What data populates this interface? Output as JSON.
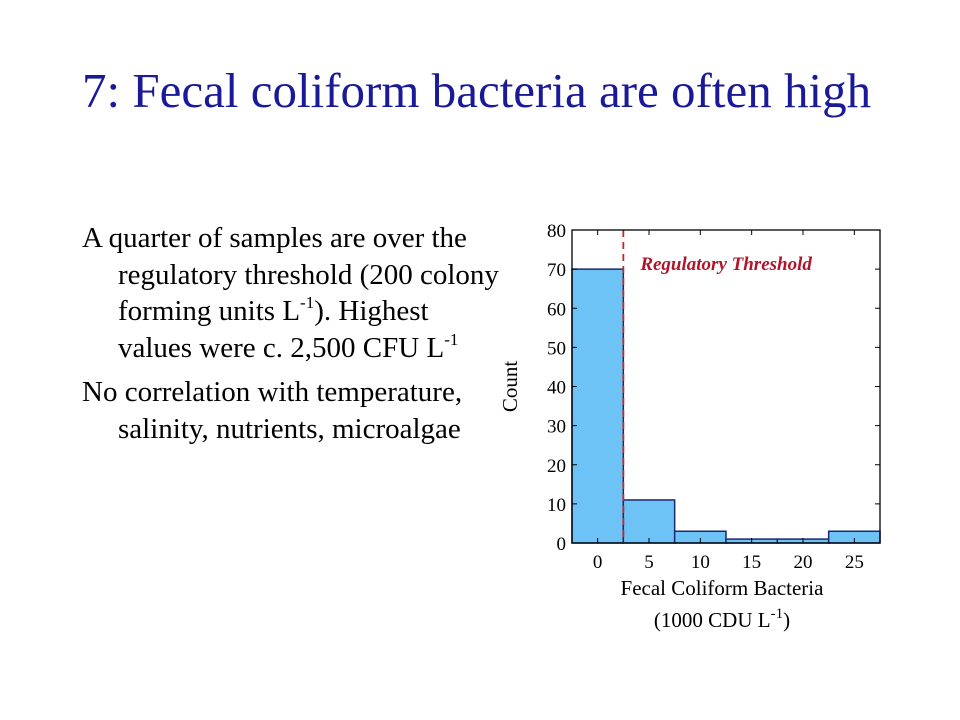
{
  "slide": {
    "title": "7: Fecal coliform bacteria are often high",
    "para1": {
      "text_a": "A quarter of samples are over the regulatory threshold (200 colony forming units L",
      "sup_a": "-1",
      "text_b": "). Highest values were c. 2,500 CFU L",
      "sup_b": "-1"
    },
    "para2": "No correlation with temperature, salinity, nutrients, microalgae"
  },
  "colors": {
    "title": "#1a1a99",
    "bar_fill": "#6ec3f6",
    "bar_stroke": "#1a2a6e",
    "threshold": "#c0282d",
    "threshold_label": "#b0152a"
  },
  "chart_data": {
    "type": "bar",
    "bins": [
      {
        "x0": -2.5,
        "x1": 2.5,
        "count": 70
      },
      {
        "x0": 2.5,
        "x1": 7.5,
        "count": 11
      },
      {
        "x0": 7.5,
        "x1": 12.5,
        "count": 3
      },
      {
        "x0": 12.5,
        "x1": 17.5,
        "count": 1
      },
      {
        "x0": 17.5,
        "x1": 22.5,
        "count": 1
      },
      {
        "x0": 22.5,
        "x1": 27.5,
        "count": 3
      }
    ],
    "xlim": [
      -2.5,
      27.5
    ],
    "ylim": [
      0,
      80
    ],
    "xticks": [
      0,
      5,
      10,
      15,
      20,
      25
    ],
    "yticks": [
      0,
      10,
      20,
      30,
      40,
      50,
      60,
      70,
      80
    ],
    "ylabel": "Count",
    "xlabel_line1": "Fecal Coliform Bacteria",
    "xlabel_line2_main": "(1000 CDU L",
    "xlabel_line2_sup": "-1",
    "xlabel_line2_end": ")",
    "threshold": {
      "x": 2.5,
      "label": "Regulatory Threshold"
    },
    "grid": false
  }
}
